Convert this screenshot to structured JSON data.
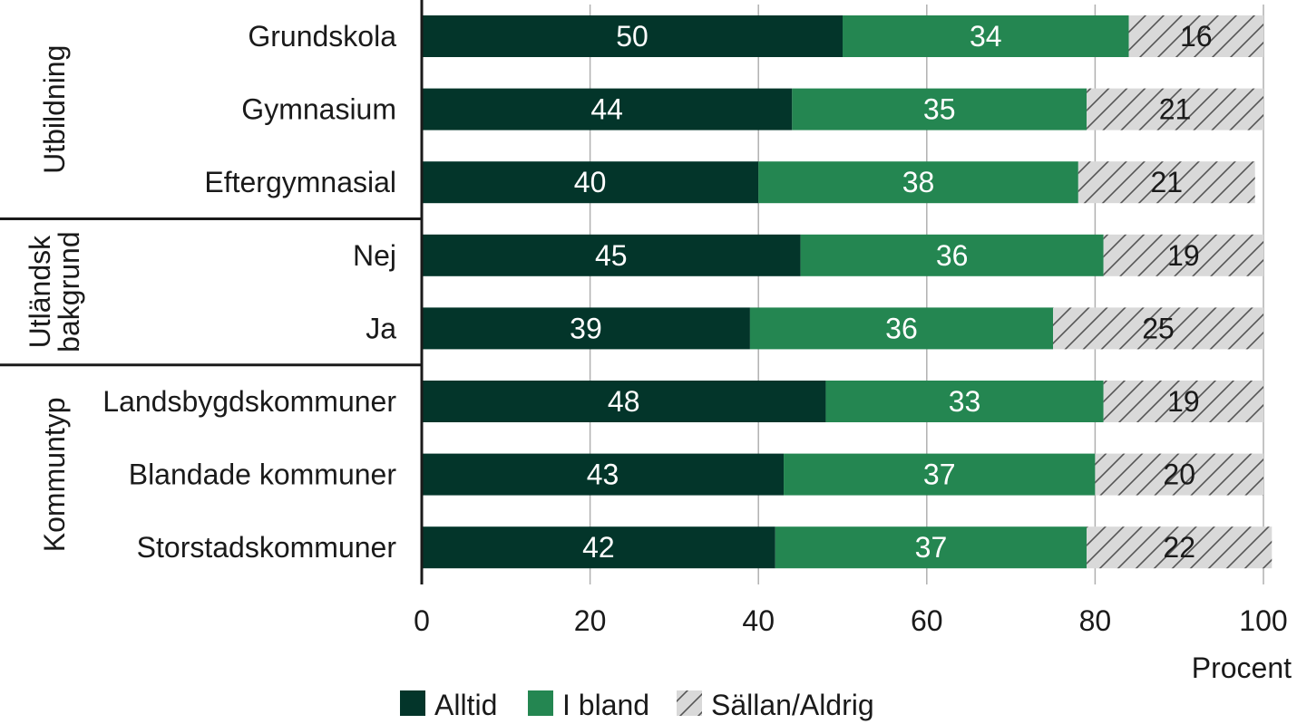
{
  "chart_data": {
    "type": "bar",
    "orientation": "horizontal",
    "stacked": true,
    "categories": [
      "Grundskola",
      "Gymnasium",
      "Eftergymnasial",
      "Nej",
      "Ja",
      "Landsbygdskommuner",
      "Blandade kommuner",
      "Storstadskommuner"
    ],
    "groups": [
      {
        "label": "Utbildning",
        "categories": [
          "Grundskola",
          "Gymnasium",
          "Eftergymnasial"
        ]
      },
      {
        "label": "Utländsk bakgrund",
        "lines": [
          "Utländsk",
          "bakgrund"
        ],
        "categories": [
          "Nej",
          "Ja"
        ]
      },
      {
        "label": "Kommuntyp",
        "categories": [
          "Landsbygdskommuner",
          "Blandade kommuner",
          "Storstadskommuner"
        ]
      }
    ],
    "series": [
      {
        "name": "Alltid",
        "color": "#03352a",
        "label_color": "#ffffff",
        "values": [
          50,
          44,
          40,
          45,
          39,
          48,
          43,
          42
        ]
      },
      {
        "name": "I bland",
        "color": "#248651",
        "label_color": "#ffffff",
        "values": [
          34,
          35,
          38,
          36,
          36,
          33,
          37,
          37
        ]
      },
      {
        "name": "Sällan/Aldrig",
        "color": "#d9d9d9",
        "pattern": "hatched",
        "label_color": "#1a1a1a",
        "values": [
          16,
          21,
          21,
          19,
          25,
          19,
          20,
          22
        ]
      }
    ],
    "xlim": [
      0,
      100
    ],
    "xticks": [
      0,
      20,
      40,
      60,
      80,
      100
    ],
    "xlabel": "Procent",
    "grid": "vertical",
    "legend": "bottom"
  }
}
